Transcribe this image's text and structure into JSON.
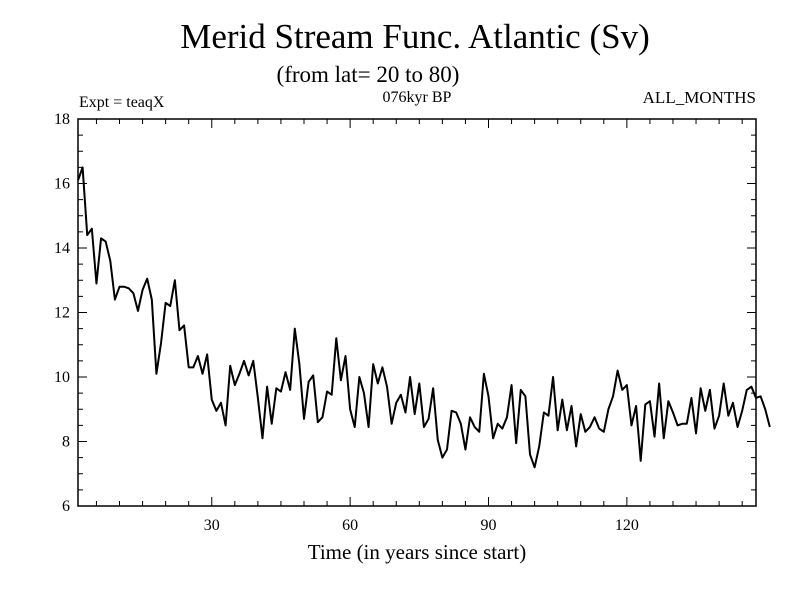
{
  "chart_data": {
    "type": "line",
    "title": "Merid Stream Func. Atlantic (Sv)",
    "subtitle": "(from lat= 20 to 80)",
    "experiment_label": "Expt = teaqX",
    "period_label": "076kyr BP",
    "months_label": "ALL_MONTHS",
    "xlabel": "Time (in years since start)",
    "ylabel": "",
    "xlim": [
      1,
      148
    ],
    "ylim": [
      6,
      18
    ],
    "x_ticks": [
      30,
      60,
      90,
      120
    ],
    "y_ticks": [
      6,
      8,
      10,
      12,
      14,
      16,
      18
    ],
    "x_minor_step": 5,
    "y_minor_step": 0.5,
    "grid": false,
    "legend": "none",
    "series": [
      {
        "name": "Merid Stream Func. Atlantic",
        "x_start": 1,
        "x_step": 1,
        "values": [
          16.1,
          16.5,
          14.4,
          14.6,
          12.9,
          14.3,
          14.2,
          13.6,
          12.4,
          12.8,
          12.8,
          12.75,
          12.6,
          12.05,
          12.7,
          13.05,
          12.4,
          10.1,
          11.05,
          12.3,
          12.2,
          13.0,
          11.45,
          11.6,
          10.3,
          10.3,
          10.65,
          10.1,
          10.7,
          9.3,
          8.95,
          9.2,
          8.5,
          10.35,
          9.75,
          10.1,
          10.5,
          10.05,
          10.5,
          9.35,
          8.1,
          9.7,
          8.55,
          9.65,
          9.55,
          10.15,
          9.6,
          11.5,
          10.4,
          8.7,
          9.85,
          10.05,
          8.6,
          8.75,
          9.55,
          9.45,
          11.2,
          9.9,
          10.65,
          9.0,
          8.45,
          10.0,
          9.5,
          8.45,
          10.4,
          9.8,
          10.3,
          9.7,
          8.55,
          9.2,
          9.45,
          8.9,
          10.0,
          8.85,
          9.8,
          8.45,
          8.7,
          9.65,
          8.05,
          7.5,
          7.75,
          8.95,
          8.9,
          8.55,
          7.75,
          8.75,
          8.45,
          8.3,
          10.1,
          9.4,
          8.1,
          8.55,
          8.4,
          8.75,
          9.75,
          7.95,
          9.6,
          9.4,
          7.6,
          7.2,
          7.85,
          8.9,
          8.8,
          10.0,
          8.35,
          9.3,
          8.35,
          9.1,
          7.85,
          8.85,
          8.3,
          8.45,
          8.75,
          8.4,
          8.3,
          9.0,
          9.4,
          10.2,
          9.6,
          9.75,
          8.5,
          9.1,
          7.4,
          9.15,
          9.25,
          8.15,
          9.8,
          8.1,
          9.25,
          8.9,
          8.5,
          8.55,
          8.55,
          9.35,
          8.25,
          9.65,
          8.95,
          9.6,
          8.4,
          8.8,
          9.8,
          8.8,
          9.2,
          8.45,
          8.95,
          9.6,
          9.7,
          9.35,
          9.4,
          9.0,
          8.45
        ]
      }
    ]
  }
}
